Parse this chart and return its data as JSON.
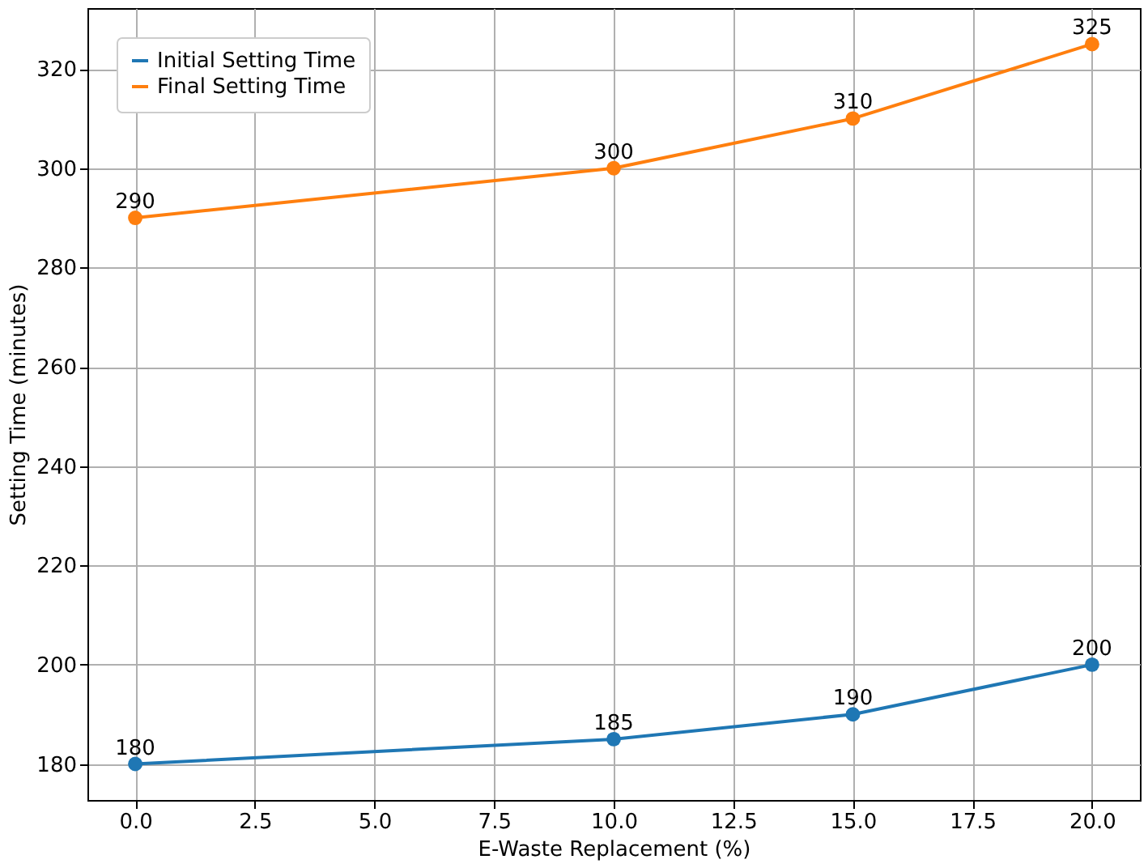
{
  "chart_data": {
    "type": "line",
    "xlabel": "E-Waste Replacement (%)",
    "ylabel": "Setting Time (minutes)",
    "x": [
      0,
      10,
      15,
      20
    ],
    "series": [
      {
        "name": "Initial Setting Time",
        "color": "#1f77b4",
        "values": [
          180,
          185,
          190,
          200
        ]
      },
      {
        "name": "Final Setting Time",
        "color": "#ff7f0e",
        "values": [
          290,
          300,
          310,
          325
        ]
      }
    ],
    "xlim": [
      -1,
      21
    ],
    "xticks": [
      {
        "value": 0,
        "label": "0.0"
      },
      2.5,
      {
        "value": 5,
        "label": "5.0"
      },
      7.5,
      {
        "value": 10,
        "label": "10.0"
      },
      12.5,
      {
        "value": 15,
        "label": "15.0"
      },
      17.5,
      {
        "value": 20,
        "label": "20.0"
      }
    ],
    "ylim": [
      172.75,
      332.25
    ],
    "yticks": [
      180,
      200,
      220,
      240,
      260,
      280,
      300,
      320
    ],
    "grid": true,
    "legend": "top left",
    "marker": "circle",
    "line_style": "solid",
    "data_labels": true
  }
}
